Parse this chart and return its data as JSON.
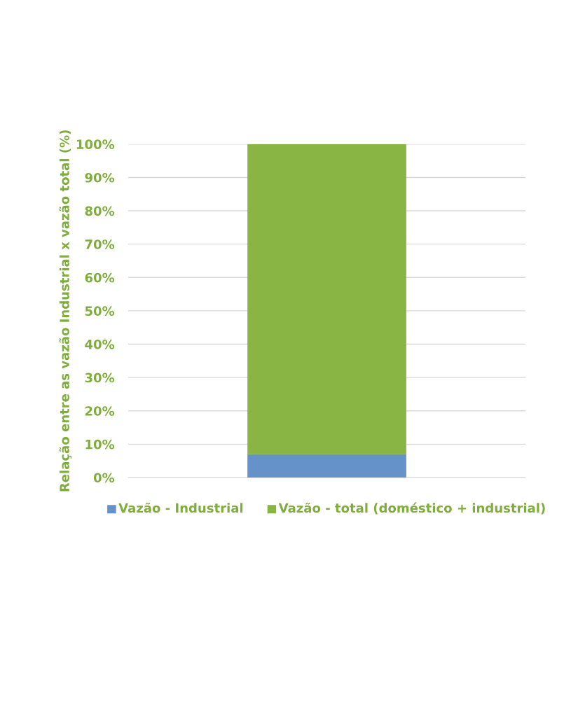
{
  "chart_data": {
    "type": "bar",
    "stacked": true,
    "ylabel": "Relação entre as vazão Industrial x vazão total (%)",
    "categories": [
      null
    ],
    "series": [
      {
        "name": "Vazão - Industrial",
        "color": "#6592c8",
        "values": [
          7
        ]
      },
      {
        "name": "Vazão - total (doméstico + industrial)",
        "color": "#89b545",
        "values": [
          93
        ]
      }
    ],
    "ylim": [
      0,
      100
    ],
    "yticks": [
      {
        "value": 0,
        "label": "0%"
      },
      {
        "value": 10,
        "label": "10%"
      },
      {
        "value": 20,
        "label": "20%"
      },
      {
        "value": 30,
        "label": "30%"
      },
      {
        "value": 40,
        "label": "40%"
      },
      {
        "value": 50,
        "label": "50%"
      },
      {
        "value": 60,
        "label": "60%"
      },
      {
        "value": 70,
        "label": "70%"
      },
      {
        "value": 80,
        "label": "80%"
      },
      {
        "value": 90,
        "label": "90%"
      },
      {
        "value": 100,
        "label": "100%"
      }
    ],
    "grid": "y",
    "legend": "bottom",
    "tick_labels": "y"
  }
}
